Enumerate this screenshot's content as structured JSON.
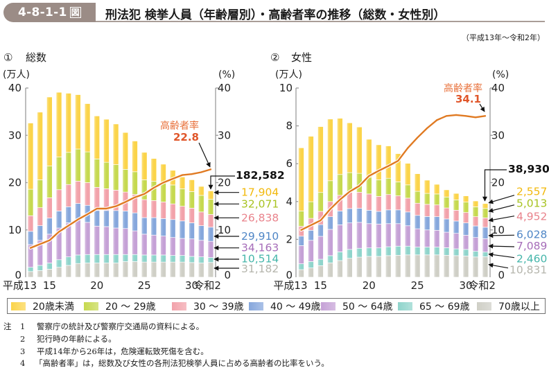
{
  "header": {
    "figure_number": "4-8-1-1",
    "figure_suffix": "図",
    "title": "刑法犯 検挙人員（年齢層別）・高齢者率の推移（総数・女性別）",
    "period": "（平成13年～令和2年）"
  },
  "colors": {
    "line": "#e07a22",
    "annotation_label": "#e8703a",
    "annotation_value": "#e0562a",
    "header_badge": "#9b8c86"
  },
  "legend": {
    "placement": "bottom",
    "items": [
      {
        "label": "20歳未満",
        "color": "#fbd44a",
        "label_color": "#f2b90c"
      },
      {
        "label": "20 ～ 29歳",
        "color": "#c6d94f",
        "label_color": "#a8c322"
      },
      {
        "label": "30 ～ 39歳",
        "color": "#f2a2aa",
        "label_color": "#e9838c"
      },
      {
        "label": "40 ～ 49歳",
        "color": "#86a7dc",
        "label_color": "#4f86c6"
      },
      {
        "label": "50 ～ 64歳",
        "color": "#c5a1d6",
        "label_color": "#a66db9"
      },
      {
        "label": "65 ～ 69歳",
        "color": "#8fd4cb",
        "label_color": "#46b6aa"
      },
      {
        "label": "70歳以上",
        "color": "#cfcfc6",
        "label_color": "#b5b5ac"
      }
    ]
  },
  "notes": {
    "prefix": "注",
    "items": [
      {
        "num": "1",
        "text": "警察庁の統計及び警察庁交通局の資料による。"
      },
      {
        "num": "2",
        "text": "犯行時の年齢による。"
      },
      {
        "num": "3",
        "text": "平成14年から26年は，危険運転致死傷を含む。"
      },
      {
        "num": "4",
        "text": "「高齢者率」は，総数及び女性の各刑法犯検挙人員に占める高齢者の比率をいう。"
      }
    ]
  },
  "chart_data": [
    {
      "type": "bar",
      "stacked": true,
      "title_num": "①",
      "title": "総数",
      "ylabel": "(万人)",
      "y2label": "(%)",
      "ylim": [
        0,
        40
      ],
      "yticks": [
        0,
        10,
        20,
        30,
        40
      ],
      "y2lim": [
        0,
        40
      ],
      "y2ticks": [
        0,
        10,
        20,
        30,
        40
      ],
      "grid": false,
      "categories": [
        "平成13",
        "平成14",
        "平成15",
        "平成16",
        "平成17",
        "平成18",
        "平成19",
        "平成20",
        "平成21",
        "平成22",
        "平成23",
        "平成24",
        "平成25",
        "平成26",
        "平成27",
        "平成28",
        "平成29",
        "平成30",
        "令和元",
        "令和2"
      ],
      "xticks": [
        {
          "index": 0,
          "label": "平成13"
        },
        {
          "index": 2,
          "label": "15"
        },
        {
          "index": 7,
          "label": "20"
        },
        {
          "index": 12,
          "label": "25"
        },
        {
          "index": 17,
          "label": "30"
        },
        {
          "index": 19,
          "label": "令和2"
        }
      ],
      "series": [
        {
          "name": "20歳未満",
          "values": [
            14.0,
            14.3,
            14.6,
            13.7,
            12.5,
            11.5,
            10.2,
            9.1,
            9.1,
            8.6,
            7.8,
            6.5,
            5.8,
            4.8,
            3.8,
            3.1,
            2.5,
            2.5,
            1.9,
            1.79
          ]
        },
        {
          "name": "20～29歳",
          "values": [
            5.6,
            5.9,
            6.7,
            6.9,
            6.8,
            6.8,
            6.5,
            6.0,
            5.6,
            5.4,
            4.8,
            4.8,
            4.2,
            4.1,
            4.2,
            4.0,
            3.7,
            3.5,
            3.5,
            3.21
          ]
        },
        {
          "name": "30～39歳",
          "values": [
            3.3,
            3.8,
            4.3,
            4.5,
            4.7,
            4.7,
            4.8,
            4.9,
            4.6,
            4.3,
            4.0,
            3.9,
            3.8,
            3.6,
            3.5,
            3.3,
            3.1,
            3.1,
            2.9,
            2.68
          ]
        },
        {
          "name": "40～49歳",
          "values": [
            2.8,
            3.1,
            3.4,
            3.6,
            3.4,
            3.3,
            3.6,
            3.3,
            3.4,
            3.7,
            3.7,
            3.8,
            3.5,
            3.7,
            3.7,
            3.8,
            3.7,
            3.4,
            3.1,
            2.99
          ]
        },
        {
          "name": "50～64歳",
          "values": [
            4.8,
            5.3,
            6.1,
            6.7,
            7.2,
            7.6,
            6.8,
            6.0,
            5.9,
            5.6,
            5.5,
            5.0,
            4.4,
            4.2,
            4.0,
            3.8,
            3.6,
            3.7,
            3.5,
            3.42
          ]
        },
        {
          "name": "65～69歳",
          "values": [
            0.9,
            1.1,
            1.3,
            1.6,
            1.8,
            1.8,
            1.8,
            1.8,
            1.8,
            1.8,
            1.5,
            1.5,
            1.5,
            1.5,
            1.5,
            1.4,
            1.4,
            1.3,
            1.3,
            1.05
          ]
        },
        {
          "name": "70歳以上",
          "values": [
            1.2,
            1.4,
            1.7,
            2.1,
            2.5,
            2.9,
            3.0,
            3.0,
            3.0,
            3.0,
            3.3,
            3.3,
            3.2,
            3.2,
            3.2,
            3.2,
            3.2,
            3.1,
            3.0,
            3.12
          ]
        }
      ],
      "line": {
        "name": "高齢者率",
        "axis": "right",
        "unit": "%",
        "values": [
          6.2,
          7.0,
          7.8,
          9.6,
          10.9,
          12.2,
          13.3,
          14.5,
          14.5,
          15.0,
          15.9,
          16.9,
          17.6,
          18.9,
          20.0,
          20.8,
          21.6,
          21.8,
          22.2,
          22.8
        ],
        "annotation_label": "高齢者率",
        "annotation_value": "22.8"
      },
      "callouts": {
        "category": "令和2",
        "total": "182,582",
        "segments": [
          "17,904",
          "32,071",
          "26,838",
          "29,910",
          "34,163",
          "10,514",
          "31,182"
        ]
      }
    },
    {
      "type": "bar",
      "stacked": true,
      "title_num": "②",
      "title": "女性",
      "ylabel": "(万人)",
      "y2label": "(%)",
      "ylim": [
        0,
        10
      ],
      "yticks": [
        0,
        2,
        4,
        6,
        8,
        10
      ],
      "y2lim": [
        0,
        40
      ],
      "y2ticks": [
        0,
        10,
        20,
        30,
        40
      ],
      "grid": false,
      "categories": [
        "平成13",
        "平成14",
        "平成15",
        "平成16",
        "平成17",
        "平成18",
        "平成19",
        "平成20",
        "平成21",
        "平成22",
        "平成23",
        "平成24",
        "平成25",
        "平成26",
        "平成27",
        "平成28",
        "平成29",
        "平成30",
        "令和元",
        "令和2"
      ],
      "xticks": [
        {
          "index": 0,
          "label": "平成13"
        },
        {
          "index": 2,
          "label": "15"
        },
        {
          "index": 7,
          "label": "20"
        },
        {
          "index": 12,
          "label": "25"
        },
        {
          "index": 17,
          "label": "30"
        },
        {
          "index": 19,
          "label": "令和2"
        }
      ],
      "series": [
        {
          "name": "20歳未満",
          "values": [
            3.34,
            3.46,
            3.48,
            3.26,
            2.97,
            2.63,
            2.45,
            2.02,
            1.85,
            1.71,
            1.49,
            1.14,
            0.93,
            0.7,
            0.51,
            0.38,
            0.34,
            0.33,
            0.31,
            0.2557
          ]
        },
        {
          "name": "20～29歳",
          "values": [
            0.81,
            0.88,
            1.0,
            1.1,
            1.1,
            1.04,
            1.0,
            0.87,
            0.88,
            0.86,
            0.74,
            0.7,
            0.63,
            0.58,
            0.58,
            0.58,
            0.55,
            0.55,
            0.52,
            0.5013
          ]
        },
        {
          "name": "30～39歳",
          "values": [
            0.52,
            0.63,
            0.7,
            0.8,
            0.83,
            0.86,
            0.85,
            0.86,
            0.79,
            0.81,
            0.74,
            0.73,
            0.64,
            0.64,
            0.62,
            0.58,
            0.57,
            0.55,
            0.49,
            0.4952
          ]
        },
        {
          "name": "40～49歳",
          "values": [
            0.5,
            0.53,
            0.62,
            0.67,
            0.73,
            0.76,
            0.74,
            0.71,
            0.67,
            0.73,
            0.73,
            0.73,
            0.71,
            0.71,
            0.72,
            0.7,
            0.65,
            0.65,
            0.61,
            0.6028
          ]
        },
        {
          "name": "50～64歳",
          "values": [
            0.96,
            1.12,
            1.21,
            1.39,
            1.43,
            1.4,
            1.37,
            1.28,
            1.26,
            1.22,
            1.19,
            1.08,
            0.97,
            0.91,
            0.89,
            0.82,
            0.82,
            0.75,
            0.73,
            0.7089
          ]
        },
        {
          "name": "65～69歳",
          "values": [
            0.31,
            0.34,
            0.34,
            0.38,
            0.46,
            0.47,
            0.47,
            0.45,
            0.45,
            0.47,
            0.48,
            0.46,
            0.41,
            0.41,
            0.41,
            0.4,
            0.36,
            0.35,
            0.3,
            0.246
          ]
        },
        {
          "name": "70歳以上",
          "values": [
            0.4,
            0.49,
            0.61,
            0.76,
            0.88,
            1.0,
            1.06,
            1.1,
            1.1,
            1.14,
            1.16,
            1.18,
            1.18,
            1.18,
            1.18,
            1.16,
            1.14,
            1.12,
            1.07,
            1.0831
          ]
        }
      ],
      "line": {
        "name": "高齢者率",
        "axis": "right",
        "unit": "%",
        "values": [
          10.0,
          11.0,
          12.0,
          14.4,
          16.4,
          18.1,
          19.3,
          21.4,
          22.5,
          23.5,
          24.6,
          27.3,
          29.5,
          31.5,
          33.2,
          34.1,
          34.3,
          34.1,
          33.8,
          34.1
        ],
        "annotation_label": "高齢者率",
        "annotation_value": "34.1"
      },
      "callouts": {
        "category": "令和2",
        "total": "38,930",
        "segments": [
          "2,557",
          "5,013",
          "4,952",
          "6,028",
          "7,089",
          "2,460",
          "10,831"
        ]
      }
    }
  ]
}
